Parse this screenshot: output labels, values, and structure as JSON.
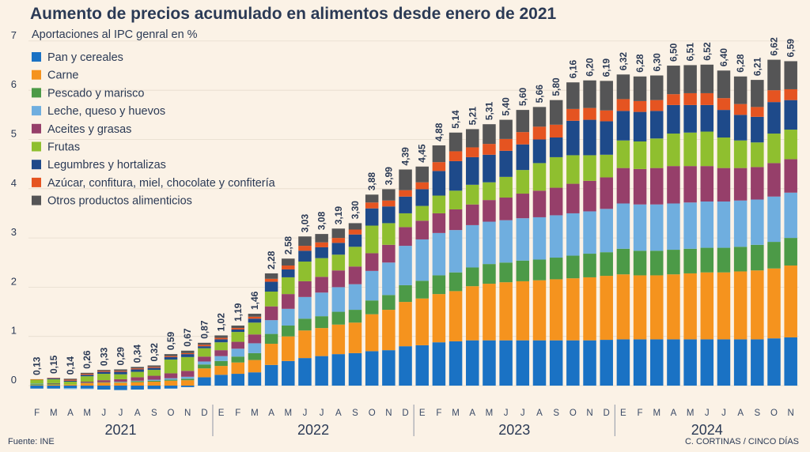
{
  "title": "Aumento de precios acumulado en alimentos desde enero de 2021",
  "subtitle": "Aportaciones al IPC genral en %",
  "source": "Fuente: INE",
  "credit": "C. CORTINAS / CINCO DÍAS",
  "chart_data": {
    "type": "bar",
    "stacked": true,
    "title": "Aumento de precios acumulado en alimentos desde enero de 2021",
    "subtitle": "Aportaciones al IPC genral en %",
    "ylim": [
      0,
      7
    ],
    "yticks": [
      0,
      1,
      2,
      3,
      4,
      5,
      6,
      7
    ],
    "legend_position": "top-left",
    "categories": [
      "F",
      "M",
      "A",
      "M",
      "J",
      "J",
      "A",
      "S",
      "O",
      "N",
      "D",
      "E",
      "F",
      "M",
      "A",
      "M",
      "J",
      "J",
      "A",
      "S",
      "O",
      "N",
      "D",
      "E",
      "F",
      "M",
      "A",
      "M",
      "J",
      "J",
      "A",
      "S",
      "O",
      "N",
      "D",
      "E",
      "F",
      "M",
      "A",
      "M",
      "J",
      "J",
      "A",
      "S",
      "O",
      "N"
    ],
    "years": [
      {
        "label": "2021",
        "start": 0,
        "end": 10
      },
      {
        "label": "2022",
        "start": 11,
        "end": 22
      },
      {
        "label": "2023",
        "start": 23,
        "end": 34
      },
      {
        "label": "2024",
        "start": 35,
        "end": 45
      }
    ],
    "totals": [
      "0,13",
      "0,15",
      "0,14",
      "0,26",
      "0,33",
      "0,29",
      "0,34",
      "0,32",
      "0,59",
      "0,67",
      "0,87",
      "1,02",
      "1,19",
      "1,46",
      "2,28",
      "2,58",
      "3,03",
      "3,08",
      "3,19",
      "3,30",
      "3,88",
      "3,99",
      "4,39",
      "4,45",
      "4,88",
      "5,14",
      "5,21",
      "5,31",
      "5,40",
      "5,60",
      "5,66",
      "5,80",
      "6,16",
      "6,20",
      "6,19",
      "6,32",
      "6,28",
      "6,30",
      "6,50",
      "6,51",
      "6,52",
      "6,40",
      "6,28",
      "6,21",
      "6,62",
      "6,59"
    ],
    "series": [
      {
        "name": "Pan y cereales",
        "color": "#1a72c4",
        "values": [
          -0.06,
          -0.06,
          -0.05,
          -0.06,
          -0.08,
          -0.09,
          -0.08,
          -0.07,
          -0.06,
          -0.03,
          0.17,
          0.22,
          0.24,
          0.27,
          0.42,
          0.5,
          0.56,
          0.6,
          0.64,
          0.66,
          0.7,
          0.72,
          0.8,
          0.82,
          0.88,
          0.9,
          0.92,
          0.92,
          0.92,
          0.92,
          0.92,
          0.92,
          0.92,
          0.92,
          0.93,
          0.94,
          0.94,
          0.94,
          0.94,
          0.94,
          0.94,
          0.94,
          0.94,
          0.94,
          0.96,
          0.98
        ]
      },
      {
        "name": "Carne",
        "color": "#f5931e",
        "values": [
          0.01,
          0.02,
          0.02,
          0.05,
          0.06,
          0.06,
          0.07,
          0.08,
          0.1,
          0.11,
          0.18,
          0.18,
          0.23,
          0.25,
          0.43,
          0.5,
          0.56,
          0.57,
          0.6,
          0.62,
          0.75,
          0.82,
          0.9,
          0.95,
          0.98,
          1.02,
          1.1,
          1.15,
          1.18,
          1.2,
          1.22,
          1.24,
          1.26,
          1.28,
          1.3,
          1.32,
          1.3,
          1.3,
          1.32,
          1.34,
          1.36,
          1.36,
          1.38,
          1.4,
          1.42,
          1.46
        ]
      },
      {
        "name": "Pescado y marisco",
        "color": "#4c9a47",
        "values": [
          0.02,
          0.02,
          0.0,
          0.01,
          0.01,
          0.01,
          0.02,
          0.02,
          0.02,
          0.03,
          0.08,
          0.1,
          0.12,
          0.14,
          0.2,
          0.22,
          0.24,
          0.24,
          0.26,
          0.26,
          0.28,
          0.3,
          0.34,
          0.36,
          0.38,
          0.38,
          0.38,
          0.4,
          0.4,
          0.42,
          0.42,
          0.44,
          0.46,
          0.48,
          0.48,
          0.52,
          0.5,
          0.5,
          0.5,
          0.5,
          0.5,
          0.5,
          0.5,
          0.52,
          0.54,
          0.56
        ]
      },
      {
        "name": "Leche, queso y huevos",
        "color": "#6faedf",
        "values": [
          0.01,
          0.0,
          -0.02,
          -0.01,
          0.0,
          0.01,
          0.01,
          0.02,
          0.03,
          0.04,
          0.06,
          0.1,
          0.16,
          0.2,
          0.28,
          0.34,
          0.44,
          0.48,
          0.5,
          0.52,
          0.6,
          0.66,
          0.8,
          0.84,
          0.86,
          0.86,
          0.86,
          0.86,
          0.86,
          0.86,
          0.86,
          0.86,
          0.86,
          0.86,
          0.88,
          0.92,
          0.94,
          0.94,
          0.94,
          0.94,
          0.94,
          0.94,
          0.94,
          0.92,
          0.92,
          0.92
        ]
      },
      {
        "name": "Aceites y grasas",
        "color": "#963f6a",
        "values": [
          0.0,
          0.01,
          0.0,
          0.02,
          0.04,
          0.05,
          0.07,
          0.08,
          0.1,
          0.12,
          0.1,
          0.12,
          0.14,
          0.18,
          0.28,
          0.3,
          0.32,
          0.32,
          0.34,
          0.36,
          0.36,
          0.36,
          0.38,
          0.38,
          0.4,
          0.42,
          0.42,
          0.44,
          0.46,
          0.5,
          0.54,
          0.56,
          0.6,
          0.62,
          0.64,
          0.72,
          0.72,
          0.74,
          0.76,
          0.74,
          0.72,
          0.68,
          0.66,
          0.66,
          0.68,
          0.68
        ]
      },
      {
        "name": "Frutas",
        "color": "#8fbf2f",
        "values": [
          0.08,
          0.08,
          0.06,
          0.11,
          0.13,
          0.1,
          0.11,
          0.12,
          0.28,
          0.28,
          0.17,
          0.16,
          0.2,
          0.24,
          0.3,
          0.34,
          0.4,
          0.38,
          0.32,
          0.4,
          0.56,
          0.44,
          0.28,
          0.3,
          0.36,
          0.38,
          0.4,
          0.36,
          0.42,
          0.48,
          0.56,
          0.62,
          0.58,
          0.52,
          0.46,
          0.56,
          0.56,
          0.6,
          0.66,
          0.68,
          0.7,
          0.62,
          0.56,
          0.5,
          0.6,
          0.6
        ]
      },
      {
        "name": "Legumbres y hortalizas",
        "color": "#1e4a8a",
        "values": [
          0.0,
          0.02,
          0.02,
          0.03,
          0.04,
          0.05,
          0.05,
          0.04,
          0.05,
          0.06,
          0.04,
          0.06,
          0.05,
          0.08,
          0.2,
          0.16,
          0.22,
          0.22,
          0.24,
          0.25,
          0.35,
          0.34,
          0.34,
          0.34,
          0.5,
          0.6,
          0.56,
          0.56,
          0.53,
          0.52,
          0.48,
          0.4,
          0.7,
          0.72,
          0.68,
          0.6,
          0.6,
          0.56,
          0.58,
          0.56,
          0.54,
          0.56,
          0.52,
          0.52,
          0.64,
          0.6
        ]
      },
      {
        "name": "Azúcar, confitura, miel, chocolate y confitería",
        "color": "#e55421",
        "values": [
          0.01,
          0.01,
          0.02,
          0.02,
          0.02,
          0.02,
          0.02,
          0.02,
          0.02,
          0.02,
          0.03,
          0.03,
          0.03,
          0.04,
          0.06,
          0.08,
          0.1,
          0.1,
          0.1,
          0.1,
          0.12,
          0.12,
          0.13,
          0.14,
          0.18,
          0.2,
          0.2,
          0.22,
          0.24,
          0.25,
          0.26,
          0.26,
          0.24,
          0.24,
          0.22,
          0.24,
          0.22,
          0.22,
          0.22,
          0.24,
          0.24,
          0.24,
          0.22,
          0.2,
          0.24,
          0.22
        ]
      },
      {
        "name": "Otros productos alimenticios",
        "color": "#555556",
        "values": [
          0.0,
          0.0,
          0.02,
          0.02,
          0.02,
          0.03,
          0.03,
          0.03,
          0.04,
          0.05,
          0.04,
          0.05,
          0.05,
          0.06,
          0.11,
          0.14,
          0.19,
          0.17,
          0.19,
          0.13,
          0.16,
          0.23,
          0.42,
          0.32,
          0.34,
          0.38,
          0.37,
          0.4,
          0.39,
          0.45,
          0.4,
          0.5,
          0.54,
          0.56,
          0.6,
          0.5,
          0.5,
          0.5,
          0.58,
          0.57,
          0.58,
          0.56,
          0.56,
          0.55,
          0.62,
          0.57
        ]
      }
    ]
  }
}
